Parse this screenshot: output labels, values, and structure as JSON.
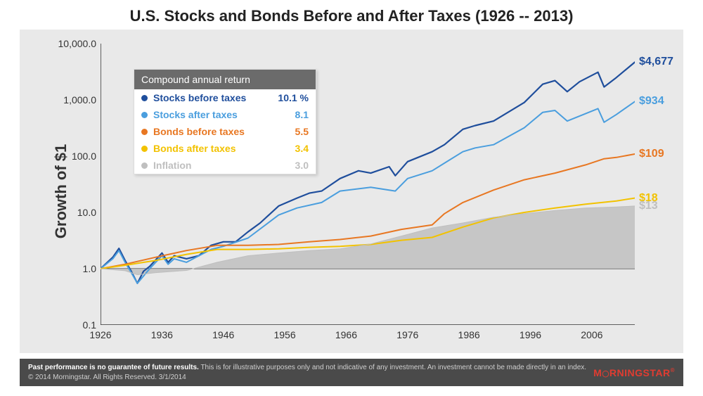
{
  "title": "U.S. Stocks and Bonds Before and After Taxes (1926 -- 2013)",
  "ylabel": "Growth of $1",
  "chart": {
    "type": "line-log",
    "background_color": "#e9e9e9",
    "axis_color": "#333333",
    "x": {
      "min": 1926,
      "max": 2013,
      "ticks": [
        1926,
        1936,
        1946,
        1956,
        1966,
        1976,
        1986,
        1996,
        2006
      ]
    },
    "y": {
      "log": true,
      "min": 0.1,
      "max": 10000,
      "ticks": [
        0.1,
        1.0,
        10.0,
        100.0,
        1000.0,
        10000.0
      ],
      "tick_labels": [
        "0.1",
        "1.0",
        "10.0",
        "100.0",
        "1,000.0",
        "10,000.0"
      ]
    },
    "series": [
      {
        "id": "stocks_before",
        "label": "Stocks before taxes",
        "color": "#1f4e9c",
        "annual_return": "10.1 %",
        "end_label": "$4,677",
        "line_width": 2.2,
        "years": [
          1926,
          1928,
          1929,
          1930,
          1931,
          1932,
          1933,
          1934,
          1936,
          1937,
          1938,
          1940,
          1942,
          1944,
          1946,
          1948,
          1950,
          1952,
          1955,
          1958,
          1960,
          1962,
          1965,
          1968,
          1970,
          1973,
          1974,
          1976,
          1980,
          1982,
          1985,
          1987,
          1990,
          1995,
          1998,
          2000,
          2002,
          2004,
          2007,
          2008,
          2010,
          2013
        ],
        "values": [
          1.0,
          1.6,
          2.3,
          1.4,
          0.9,
          0.55,
          0.9,
          1.1,
          1.9,
          1.3,
          1.7,
          1.5,
          1.7,
          2.6,
          3.0,
          3.0,
          4.5,
          6.5,
          13,
          18,
          22,
          24,
          40,
          55,
          50,
          65,
          45,
          80,
          120,
          160,
          300,
          350,
          420,
          900,
          1900,
          2200,
          1400,
          2100,
          3100,
          1700,
          2500,
          4677
        ]
      },
      {
        "id": "stocks_after",
        "label": "Stocks after taxes",
        "color": "#4a9ede",
        "annual_return": "8.1",
        "end_label": "$934",
        "line_width": 2.0,
        "years": [
          1926,
          1928,
          1929,
          1930,
          1931,
          1932,
          1934,
          1936,
          1937,
          1938,
          1940,
          1944,
          1946,
          1950,
          1955,
          1958,
          1962,
          1965,
          1970,
          1974,
          1976,
          1980,
          1985,
          1987,
          1990,
          1995,
          1998,
          2000,
          2002,
          2007,
          2008,
          2010,
          2013
        ],
        "values": [
          1.0,
          1.5,
          2.1,
          1.3,
          0.85,
          0.55,
          1.0,
          1.7,
          1.2,
          1.5,
          1.3,
          2.2,
          2.5,
          3.5,
          9,
          12,
          15,
          24,
          28,
          24,
          40,
          55,
          120,
          140,
          160,
          320,
          600,
          650,
          420,
          700,
          400,
          550,
          934
        ]
      },
      {
        "id": "bonds_before",
        "label": "Bonds before taxes",
        "color": "#e87722",
        "annual_return": "5.5",
        "end_label": "$109",
        "line_width": 2.0,
        "years": [
          1926,
          1930,
          1935,
          1940,
          1945,
          1950,
          1955,
          1960,
          1965,
          1970,
          1975,
          1980,
          1982,
          1985,
          1990,
          1995,
          2000,
          2005,
          2008,
          2010,
          2013
        ],
        "values": [
          1.0,
          1.2,
          1.6,
          2.1,
          2.6,
          2.6,
          2.7,
          3.0,
          3.3,
          3.8,
          5.0,
          6.0,
          9.5,
          15,
          25,
          38,
          50,
          70,
          90,
          95,
          109
        ]
      },
      {
        "id": "bonds_after",
        "label": "Bonds after taxes",
        "color": "#f2c200",
        "annual_return": "3.4",
        "end_label": "$18",
        "line_width": 2.0,
        "years": [
          1926,
          1930,
          1935,
          1940,
          1945,
          1950,
          1955,
          1960,
          1965,
          1970,
          1975,
          1980,
          1985,
          1990,
          1995,
          2000,
          2005,
          2010,
          2013
        ],
        "values": [
          1.0,
          1.15,
          1.4,
          1.8,
          2.2,
          2.2,
          2.25,
          2.4,
          2.5,
          2.7,
          3.2,
          3.6,
          5.5,
          8,
          10,
          12,
          14,
          16,
          18
        ]
      },
      {
        "id": "inflation",
        "label": "Inflation",
        "color": "#bfbfbf",
        "annual_return": "3.0",
        "end_label": "$13",
        "is_area": true,
        "line_width": 1.0,
        "years": [
          1926,
          1930,
          1932,
          1935,
          1940,
          1945,
          1950,
          1955,
          1960,
          1965,
          1970,
          1975,
          1980,
          1985,
          1990,
          1995,
          2000,
          2005,
          2010,
          2013
        ],
        "values": [
          1.0,
          0.92,
          0.78,
          0.85,
          0.93,
          1.3,
          1.7,
          1.9,
          2.1,
          2.25,
          2.75,
          3.8,
          5.3,
          6.5,
          8.2,
          9.5,
          10.8,
          12,
          12.5,
          13
        ]
      }
    ]
  },
  "legend": {
    "header": "Compound annual return"
  },
  "footer": {
    "bold": "Past performance is no guarantee of future results.",
    "rest": " This is for illustrative purposes only and not indicative of any investment. An investment cannot be made directly in an index. © 2014 Morningstar. All Rights Reserved. 3/1/2014",
    "brand": "MORNINGSTAR"
  }
}
